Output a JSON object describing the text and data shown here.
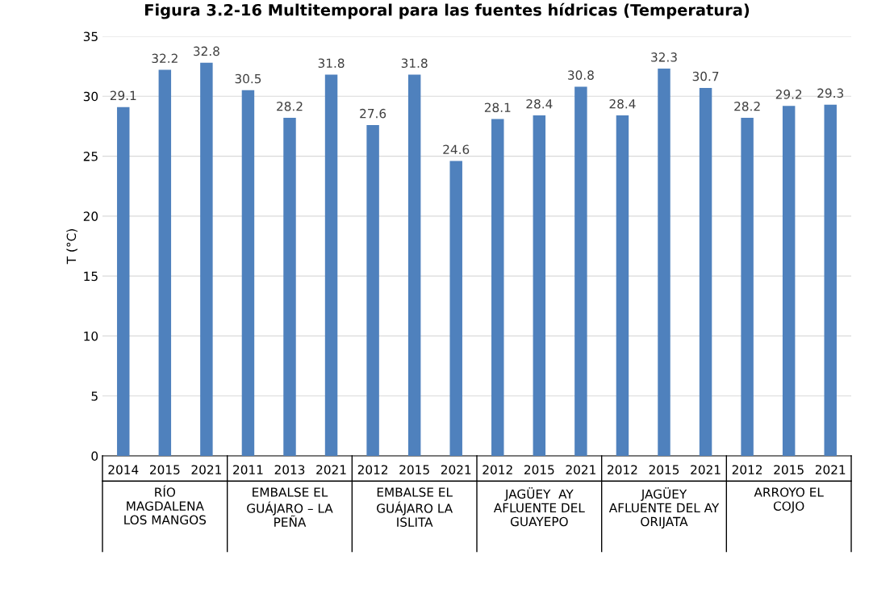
{
  "chart_data": {
    "type": "bar",
    "title": "Figura 3.2-16 Multitemporal para las fuentes hídricas (Temperatura)",
    "ylabel": "T (°C)",
    "categories": [
      "2014",
      "2015",
      "2021",
      "2011",
      "2013",
      "2021",
      "2012",
      "2015",
      "2021",
      "2012",
      "2015",
      "2021",
      "2012",
      "2015",
      "2021",
      "2012",
      "2015",
      "2021"
    ],
    "values": [
      29.1,
      32.2,
      32.8,
      30.5,
      28.2,
      31.8,
      27.6,
      31.8,
      24.6,
      28.1,
      28.4,
      30.8,
      28.4,
      32.3,
      30.7,
      28.2,
      29.2,
      29.3
    ],
    "color": "#4f81bd",
    "ylim": [
      0,
      35
    ],
    "yticks": [
      0,
      5,
      10,
      15,
      20,
      25,
      30,
      35
    ],
    "grid": "y",
    "data_labels": true,
    "annotations": [
      "RÍO\nMAGDALENA\nLOS MANGOS",
      "EMBALSE EL\nGUÁJARO – LA\nPEÑA",
      "EMBALSE EL\nGUÁJARO LA\nISLITA",
      "JAGÜEY  AY\nAFLUENTE DEL\nGUAYEPO",
      "JAGÜEY\nAFLUENTE DEL AY\nORIJATA",
      "ARROYO EL\nCOJO"
    ]
  }
}
